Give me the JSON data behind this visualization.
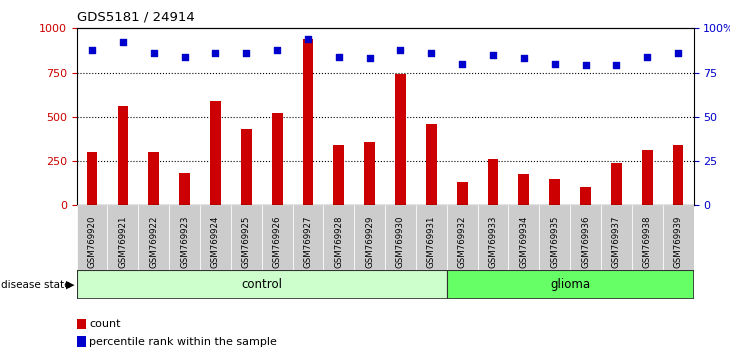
{
  "title": "GDS5181 / 24914",
  "samples": [
    "GSM769920",
    "GSM769921",
    "GSM769922",
    "GSM769923",
    "GSM769924",
    "GSM769925",
    "GSM769926",
    "GSM769927",
    "GSM769928",
    "GSM769929",
    "GSM769930",
    "GSM769931",
    "GSM769932",
    "GSM769933",
    "GSM769934",
    "GSM769935",
    "GSM769936",
    "GSM769937",
    "GSM769938",
    "GSM769939"
  ],
  "counts": [
    300,
    560,
    300,
    185,
    590,
    430,
    520,
    940,
    340,
    360,
    740,
    460,
    130,
    260,
    175,
    150,
    105,
    240,
    310,
    340
  ],
  "percentiles": [
    88,
    92,
    86,
    84,
    86,
    86,
    88,
    94,
    84,
    83,
    88,
    86,
    80,
    85,
    83,
    80,
    79,
    79,
    84,
    86
  ],
  "control_count": 12,
  "glioma_count": 8,
  "bar_color": "#cc0000",
  "dot_color": "#0000cc",
  "control_color": "#ccffcc",
  "glioma_color": "#66ff66",
  "ylim_left": [
    0,
    1000
  ],
  "yticks_left": [
    0,
    250,
    500,
    750,
    1000
  ],
  "ytick_labels_left": [
    "0",
    "250",
    "500",
    "750",
    "1000"
  ],
  "yticks_right_scaled": [
    0,
    250,
    500,
    750,
    1000
  ],
  "ytick_labels_right": [
    "0",
    "25",
    "50",
    "75",
    "100%"
  ],
  "grid_values": [
    250,
    500,
    750
  ],
  "legend_count_label": "count",
  "legend_pct_label": "percentile rank within the sample",
  "disease_state_label": "disease state",
  "control_label": "control",
  "glioma_label": "glioma",
  "tick_bg_color": "#cccccc",
  "band_border_color": "#333333"
}
